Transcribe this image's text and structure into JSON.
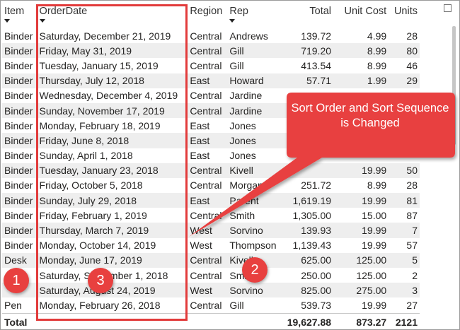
{
  "columns": [
    "Item",
    "OrderDate",
    "Region",
    "Rep",
    "Total",
    "Unit Cost",
    "Units"
  ],
  "rows": [
    [
      "Binder",
      "Saturday, December 21, 2019",
      "Central",
      "Andrews",
      "139.72",
      "4.99",
      "28"
    ],
    [
      "Binder",
      "Friday, May 31, 2019",
      "Central",
      "Gill",
      "719.20",
      "8.99",
      "80"
    ],
    [
      "Binder",
      "Tuesday, January 15, 2019",
      "Central",
      "Gill",
      "413.54",
      "8.99",
      "46"
    ],
    [
      "Binder",
      "Thursday, July 12, 2018",
      "East",
      "Howard",
      "57.71",
      "1.99",
      "29"
    ],
    [
      "Binder",
      "Wednesday, December 4, 2019",
      "Central",
      "Jardine",
      "",
      "",
      ""
    ],
    [
      "Binder",
      "Sunday, November 17, 2019",
      "Central",
      "Jardine",
      "",
      "",
      ""
    ],
    [
      "Binder",
      "Monday, February 18, 2019",
      "East",
      "Jones",
      "",
      "",
      ""
    ],
    [
      "Binder",
      "Friday, June 8, 2018",
      "East",
      "Jones",
      "",
      "",
      ""
    ],
    [
      "Binder",
      "Sunday, April 1, 2018",
      "East",
      "Jones",
      "",
      "",
      ""
    ],
    [
      "Binder",
      "Tuesday, January 23, 2018",
      "Central",
      "Kivell",
      "",
      "19.99",
      "50"
    ],
    [
      "Binder",
      "Friday, October 5, 2018",
      "Central",
      "Morgan",
      "251.72",
      "8.99",
      "28"
    ],
    [
      "Binder",
      "Sunday, July 29, 2018",
      "East",
      "Parent",
      "1,619.19",
      "19.99",
      "81"
    ],
    [
      "Binder",
      "Friday, February 1, 2019",
      "Central",
      "Smith",
      "1,305.00",
      "15.00",
      "87"
    ],
    [
      "Binder",
      "Thursday, March 7, 2019",
      "West",
      "Sorvino",
      "139.93",
      "19.99",
      "7"
    ],
    [
      "Binder",
      "Monday, October 14, 2019",
      "West",
      "Thompson",
      "1,139.43",
      "19.99",
      "57"
    ],
    [
      "Desk",
      "Monday, June 17, 2019",
      "Central",
      "Kivell",
      "625.00",
      "125.00",
      "5"
    ],
    [
      "",
      "Saturday, September 1, 2018",
      "Central",
      "Smith",
      "250.00",
      "125.00",
      "2"
    ],
    [
      "",
      "Saturday, August 24, 2019",
      "West",
      "Sorvino",
      "825.00",
      "275.00",
      "3"
    ],
    [
      "Pen",
      "Monday, February 26, 2018",
      "Central",
      "Gill",
      "539.73",
      "19.99",
      "27"
    ]
  ],
  "footer": {
    "label": "Total",
    "total": "19,627.88",
    "unit_cost": "873.27",
    "units": "2121"
  },
  "callout": {
    "text": "Sort Order and Sort Sequence is Changed",
    "color": "#e8403f"
  },
  "badges": [
    "1",
    "2",
    "3"
  ],
  "highlight_color": "#e23b3b"
}
